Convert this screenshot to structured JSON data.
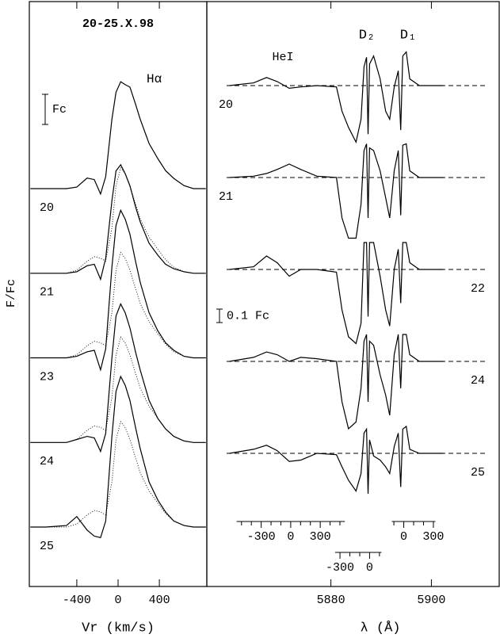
{
  "ylabel": "F/Fc",
  "chart_data": [
    {
      "type": "line",
      "title": "20-25.X.98",
      "annotation": "Hα",
      "xlabel": "Vr (km/s)",
      "xlim": [
        -860,
        860
      ],
      "xticks": [
        -400,
        0,
        400
      ],
      "scale_bar": {
        "value": 1,
        "label": "Fc"
      },
      "x": [
        -850,
        -700,
        -500,
        -400,
        -300,
        -230,
        -170,
        -120,
        -60,
        -20,
        25,
        70,
        115,
        170,
        215,
        300,
        385,
        460,
        540,
        640,
        730,
        850
      ],
      "series": [
        {
          "name": "20",
          "color": "#000000",
          "values": [
            0,
            0,
            0,
            0.05,
            0.35,
            0.3,
            -0.18,
            0.4,
            2.3,
            3.2,
            3.55,
            3.45,
            3.37,
            2.8,
            2.3,
            1.5,
            1.0,
            0.6,
            0.34,
            0.1,
            0,
            0
          ]
        },
        {
          "name": "21",
          "color": "#000000",
          "values": [
            0,
            0,
            0,
            0.05,
            0.25,
            0.3,
            -0.2,
            0.5,
            2.4,
            3.4,
            3.6,
            3.3,
            2.9,
            2.2,
            1.7,
            1.0,
            0.6,
            0.3,
            0.15,
            0.05,
            0,
            0
          ],
          "reference": [
            0,
            0,
            0,
            0.1,
            0.4,
            0.55,
            0.5,
            0.4,
            1.5,
            2.9,
            3.5,
            3.3,
            2.9,
            2.3,
            1.8,
            1.2,
            0.8,
            0.45,
            0.2,
            0.05,
            0,
            0
          ]
        },
        {
          "name": "23",
          "color": "#000000",
          "values": [
            0,
            0,
            0,
            0.05,
            0.2,
            0.25,
            -0.4,
            0.3,
            3.0,
            4.4,
            4.9,
            4.6,
            4.1,
            3.2,
            2.5,
            1.5,
            0.9,
            0.5,
            0.25,
            0.05,
            0,
            0
          ],
          "reference": [
            0,
            0,
            0,
            0.1,
            0.4,
            0.55,
            0.5,
            0.4,
            1.5,
            2.9,
            3.5,
            3.3,
            2.9,
            2.3,
            1.8,
            1.2,
            0.8,
            0.45,
            0.2,
            0.05,
            0,
            0
          ]
        },
        {
          "name": "24",
          "color": "#000000",
          "values": [
            0,
            0,
            0,
            0.1,
            0.2,
            0.15,
            -0.3,
            0.3,
            2.8,
            4.2,
            4.6,
            4.3,
            3.8,
            3.0,
            2.4,
            1.4,
            0.8,
            0.45,
            0.2,
            0.05,
            0,
            0
          ],
          "reference": [
            0,
            0,
            0,
            0.1,
            0.4,
            0.55,
            0.5,
            0.4,
            1.5,
            2.9,
            3.5,
            3.3,
            2.9,
            2.3,
            1.8,
            1.2,
            0.8,
            0.45,
            0.2,
            0.05,
            0,
            0
          ]
        },
        {
          "name": "25",
          "color": "#000000",
          "values": [
            0,
            0,
            0.05,
            0.35,
            -0.1,
            -0.3,
            -0.35,
            0.2,
            3.0,
            4.5,
            5.0,
            4.7,
            4.2,
            3.3,
            2.6,
            1.5,
            0.9,
            0.5,
            0.2,
            0.05,
            0,
            0
          ],
          "reference": [
            0,
            0,
            0,
            0.1,
            0.4,
            0.55,
            0.5,
            0.4,
            1.5,
            2.9,
            3.5,
            3.3,
            2.9,
            2.3,
            1.8,
            1.2,
            0.8,
            0.45,
            0.2,
            0.05,
            0,
            0
          ]
        }
      ]
    },
    {
      "type": "line",
      "xlabel": "λ (Å)",
      "annotations": [
        "HeI",
        "D₂",
        "D₁"
      ],
      "xlim": [
        5855.3,
        5913.5
      ],
      "xticks": [
        5880,
        5900
      ],
      "continuum_lines": true,
      "scale_bar": {
        "value": 0.1,
        "label": "0.1 Fc"
      },
      "x": [
        5859.8,
        5864.6,
        5867.2,
        5869.3,
        5871.7,
        5874.0,
        5877.2,
        5881.1,
        5882.2,
        5883.5,
        5885.0,
        5886.0,
        5886.6,
        5887.1,
        5887.4,
        5887.7,
        5888.5,
        5889.8,
        5890.9,
        5891.7,
        5892.6,
        5893.4,
        5893.9,
        5894.3,
        5895.0,
        5895.7,
        5897.6,
        5902.4
      ],
      "series": [
        {
          "name": "20",
          "color": "#000000",
          "values": [
            0,
            0.02,
            0.06,
            0.03,
            -0.02,
            -0.01,
            0,
            -0.01,
            -0.19,
            -0.31,
            -0.42,
            -0.25,
            0.14,
            0.21,
            -0.36,
            0.16,
            0.22,
            0.05,
            -0.19,
            -0.25,
            -0.01,
            0.11,
            -0.33,
            0.22,
            0.25,
            0.05,
            0,
            0
          ]
        },
        {
          "name": "21",
          "color": "#000000",
          "values": [
            0,
            0.01,
            0.03,
            0.06,
            0.1,
            0.06,
            0.01,
            0,
            -0.3,
            -0.45,
            -0.45,
            -0.2,
            0.2,
            0.25,
            -0.3,
            0.22,
            0.2,
            0.05,
            -0.15,
            -0.3,
            0.05,
            0.2,
            -0.28,
            0.24,
            0.25,
            0.05,
            0,
            0
          ]
        },
        {
          "name": "22",
          "color": "#000000",
          "values": [
            0,
            0.02,
            0.1,
            0.05,
            -0.05,
            0,
            0,
            -0.02,
            -0.3,
            -0.5,
            -0.55,
            -0.4,
            0.2,
            0.2,
            -0.35,
            0.2,
            0.2,
            -0.05,
            -0.3,
            -0.42,
            0.0,
            0.15,
            -0.25,
            0.2,
            0.2,
            0.05,
            0,
            0
          ]
        },
        {
          "name": "24",
          "color": "#000000",
          "values": [
            0,
            0.03,
            0.07,
            0.05,
            0,
            0.03,
            0.02,
            0,
            -0.3,
            -0.5,
            -0.45,
            -0.2,
            0.15,
            0.2,
            -0.3,
            0.15,
            0.12,
            -0.1,
            -0.25,
            -0.4,
            0.05,
            0.2,
            -0.2,
            0.2,
            0.2,
            0.05,
            0,
            0
          ]
        },
        {
          "name": "25",
          "color": "#000000",
          "values": [
            0,
            0.03,
            0.06,
            0.02,
            -0.06,
            -0.05,
            0,
            -0.01,
            -0.1,
            -0.2,
            -0.28,
            -0.15,
            0.15,
            0.18,
            -0.3,
            0.1,
            -0.02,
            -0.05,
            -0.1,
            -0.15,
            0.05,
            0.15,
            -0.25,
            0.18,
            0.2,
            0.03,
            0,
            0
          ]
        }
      ],
      "velocity_scales": [
        {
          "zero_wavelength": 5872.0,
          "range": [
            -550,
            550
          ],
          "ticks": [
            -300,
            0,
            300
          ],
          "minor_ticks": [
            -500,
            -400,
            -200,
            -100,
            100,
            200,
            400,
            500
          ]
        },
        {
          "zero_wavelength": 5887.7,
          "range": [
            -350,
            120
          ],
          "ticks": [
            -300,
            0
          ],
          "minor_ticks": [
            -200,
            -100,
            100
          ]
        },
        {
          "zero_wavelength": 5894.5,
          "range": [
            -120,
            320
          ],
          "ticks": [
            0,
            300
          ],
          "minor_ticks": [
            -100,
            100,
            200
          ]
        }
      ]
    }
  ]
}
